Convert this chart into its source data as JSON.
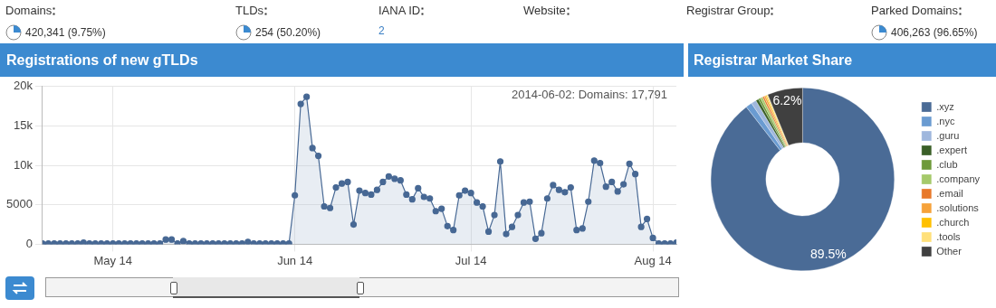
{
  "chart_data": [
    {
      "type": "other",
      "categories": [
        "Domains",
        "TLDs",
        "IANA ID",
        "Website",
        "Registrar Group",
        "Parked Domains"
      ],
      "value_labels": [
        "420,341 (9.75%)",
        "254 (50.20%)",
        "2",
        null,
        null,
        "406,263 (96.65%)"
      ]
    },
    {
      "type": "area",
      "title": "Registrations of new gTLDs",
      "marker": "circle",
      "grid": true,
      "x": [
        "2014-04-19",
        "2014-04-20",
        "2014-04-21",
        "2014-04-22",
        "2014-04-23",
        "2014-04-24",
        "2014-04-25",
        "2014-04-26",
        "2014-04-27",
        "2014-04-28",
        "2014-04-29",
        "2014-04-30",
        "2014-05-01",
        "2014-05-02",
        "2014-05-03",
        "2014-05-04",
        "2014-05-05",
        "2014-05-06",
        "2014-05-07",
        "2014-05-08",
        "2014-05-09",
        "2014-05-10",
        "2014-05-11",
        "2014-05-12",
        "2014-05-13",
        "2014-05-14",
        "2014-05-15",
        "2014-05-16",
        "2014-05-17",
        "2014-05-18",
        "2014-05-19",
        "2014-05-20",
        "2014-05-21",
        "2014-05-22",
        "2014-05-23",
        "2014-05-24",
        "2014-05-25",
        "2014-05-26",
        "2014-05-27",
        "2014-05-28",
        "2014-05-29",
        "2014-05-30",
        "2014-05-31",
        "2014-06-01",
        "2014-06-02",
        "2014-06-03",
        "2014-06-04",
        "2014-06-05",
        "2014-06-06",
        "2014-06-07",
        "2014-06-08",
        "2014-06-09",
        "2014-06-10",
        "2014-06-11",
        "2014-06-12",
        "2014-06-13",
        "2014-06-14",
        "2014-06-15",
        "2014-06-16",
        "2014-06-17",
        "2014-06-18",
        "2014-06-19",
        "2014-06-20",
        "2014-06-21",
        "2014-06-22",
        "2014-06-23",
        "2014-06-24",
        "2014-06-25",
        "2014-06-26",
        "2014-06-27",
        "2014-06-28",
        "2014-06-29",
        "2014-06-30",
        "2014-07-01",
        "2014-07-02",
        "2014-07-03",
        "2014-07-04",
        "2014-07-05",
        "2014-07-06",
        "2014-07-07",
        "2014-07-08",
        "2014-07-09",
        "2014-07-10",
        "2014-07-11",
        "2014-07-12",
        "2014-07-13",
        "2014-07-14",
        "2014-07-15",
        "2014-07-16",
        "2014-07-17",
        "2014-07-18",
        "2014-07-19",
        "2014-07-20",
        "2014-07-21",
        "2014-07-22",
        "2014-07-23",
        "2014-07-24",
        "2014-07-25",
        "2014-07-26",
        "2014-07-27",
        "2014-07-28",
        "2014-07-29",
        "2014-07-30",
        "2014-07-31",
        "2014-08-01",
        "2014-08-02",
        "2014-08-03",
        "2014-08-04",
        "2014-08-05"
      ],
      "series": [
        {
          "color": "#476894",
          "values": [
            100,
            100,
            100,
            100,
            100,
            100,
            100,
            200,
            100,
            100,
            100,
            100,
            100,
            100,
            100,
            100,
            100,
            100,
            100,
            100,
            100,
            600,
            600,
            100,
            400,
            100,
            100,
            100,
            100,
            100,
            100,
            100,
            100,
            100,
            100,
            300,
            100,
            100,
            100,
            100,
            100,
            100,
            100,
            6200,
            17791,
            18700,
            12200,
            11200,
            4800,
            4600,
            7200,
            7700,
            7900,
            2500,
            6800,
            6500,
            6300,
            6900,
            7900,
            8600,
            8300,
            8100,
            6300,
            5700,
            7100,
            6000,
            5800,
            4200,
            4500,
            2300,
            1800,
            6200,
            6800,
            6500,
            5300,
            4800,
            1600,
            3700,
            10500,
            1300,
            2200,
            3700,
            5300,
            5400,
            700,
            1400,
            5800,
            7500,
            6900,
            6600,
            7200,
            1800,
            2000,
            5400,
            10600,
            10300,
            7300,
            7900,
            6700,
            7600,
            10200,
            8900,
            2200,
            3200,
            800,
            100,
            100,
            100,
            200
          ]
        }
      ],
      "xlim": [
        "2014-04-19",
        "2014-08-05"
      ],
      "xticks": [
        {
          "value": "2014-05-01",
          "label": "May 14"
        },
        {
          "value": "2014-06-01",
          "label": "Jun 14"
        },
        {
          "value": "2014-07-01",
          "label": "Jul 14"
        },
        {
          "value": "2014-08-01",
          "label": "Aug 14"
        }
      ],
      "ylim": [
        0,
        20000
      ],
      "yticks": [
        0,
        5000,
        {
          "value": 10000,
          "label": "10k"
        },
        {
          "value": 15000,
          "label": "15k"
        },
        {
          "value": 20000,
          "label": "20k"
        }
      ],
      "annotations": [
        "2014-06-02: Domains: 17,791"
      ]
    },
    {
      "type": "donut",
      "title": "Registrar Market Share",
      "legend": "right",
      "categories": [
        ".xyz",
        ".nyc",
        ".guru",
        ".expert",
        ".club",
        ".company",
        ".email",
        ".solutions",
        ".church",
        ".tools",
        "Other"
      ],
      "values": [
        89.5,
        1.1,
        0.9,
        0.5,
        0.4,
        0.4,
        0.3,
        0.3,
        0.2,
        0.2,
        6.2
      ],
      "colors": [
        "#4a6b96",
        "#6a9bd1",
        "#9fb7dd",
        "#3a5f27",
        "#6e9a3a",
        "#a5c96a",
        "#e8782a",
        "#f6a23a",
        "#ffc000",
        "#ffe07a",
        "#404040"
      ],
      "value_labels": [
        "89.5%",
        null,
        null,
        null,
        null,
        null,
        null,
        null,
        null,
        null,
        "6.2%"
      ]
    }
  ]
}
